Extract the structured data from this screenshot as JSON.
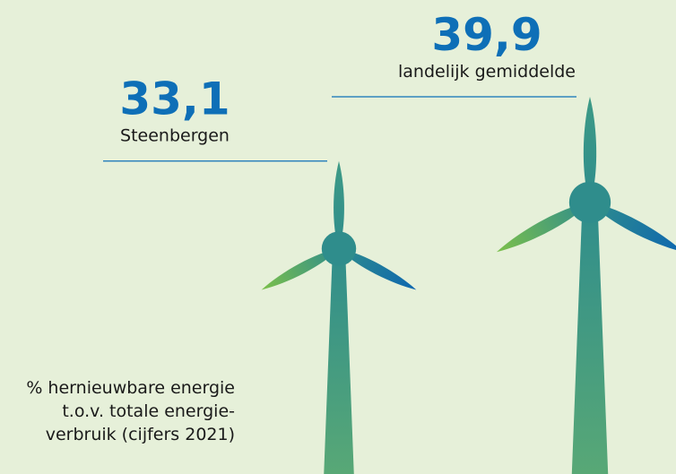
{
  "chart_data": {
    "type": "turbine",
    "categories": [
      "Steenbergen",
      "landelijk gemiddelde"
    ],
    "values": [
      33.1,
      39.9
    ],
    "value_labels": [
      "33,1",
      "39,9"
    ],
    "note": "% hernieuwbare energie t.o.v. totale energie-verbruik (cijfers 2021)",
    "color": "#0e6fb7"
  }
}
